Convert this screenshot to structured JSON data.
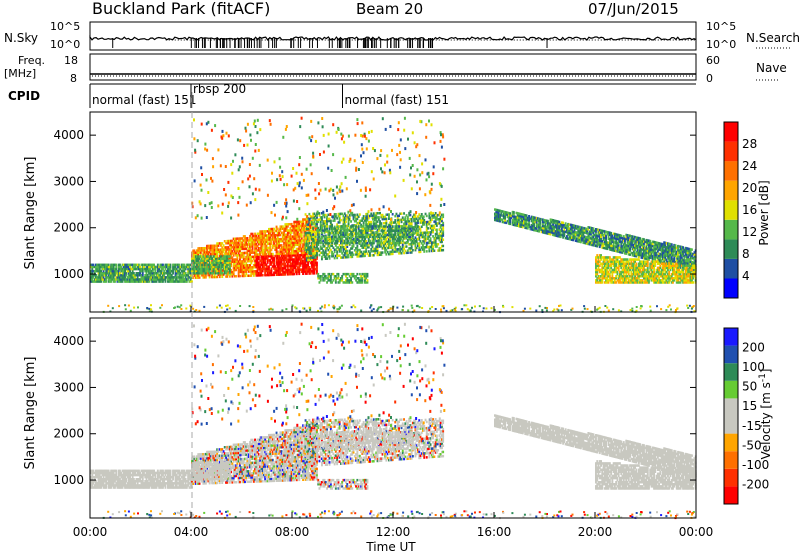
{
  "header": {
    "station": "Buckland Park (fitACF)",
    "beam": "Beam 20",
    "date": "07/Jun/2015"
  },
  "status_panel": {
    "nsky_label": "N.Sky",
    "nsearch_label": "N.Search",
    "nsky_ticks": [
      "10^5",
      "10^0"
    ],
    "nsearch_ticks": [
      "10^5",
      "10^0"
    ],
    "freq_label_top": "Freq.",
    "freq_label_unit": "[MHz]",
    "freq_ticks": [
      "18",
      "8"
    ],
    "nave_label": "Nave",
    "nave_ticks": [
      "60",
      "0"
    ],
    "cpid_label": "CPID",
    "cpid_segments": [
      {
        "label": "normal (fast) 151",
        "start_hour": 0,
        "end_hour": 4
      },
      {
        "label": "rbsp 200",
        "start_hour": 4,
        "end_hour": 10
      },
      {
        "label": "normal (fast) 151",
        "start_hour": 10,
        "end_hour": 24
      }
    ]
  },
  "colors": {
    "power_scale": [
      "#0000ff",
      "#1f4fa3",
      "#2e8b57",
      "#55b84a",
      "#e0e000",
      "#ffa500",
      "#ff7000",
      "#ff3000",
      "#ff0000"
    ],
    "velocity_scale": [
      "#1a1aff",
      "#2050b0",
      "#2e8b57",
      "#66cc33",
      "#c8c8c0",
      "#c8c8c0",
      "#ffa500",
      "#ff7000",
      "#ff3000",
      "#ff0000"
    ],
    "gs_gray": "#c8c8c0"
  },
  "chart_data": [
    {
      "type": "heatmap",
      "name": "power",
      "xlabel": "Time UT",
      "ylabel": "Slant Range [km]",
      "xlim": [
        0,
        24
      ],
      "ylim": [
        180,
        4500
      ],
      "y_ticks": [
        "1000",
        "2000",
        "3000",
        "4000"
      ],
      "colorbar_label": "Power [dB]",
      "colorbar_ticks": [
        "4",
        "8",
        "12",
        "16",
        "20",
        "24",
        "28"
      ],
      "colorbar_range": [
        0,
        30
      ],
      "echo_regions": [
        {
          "desc": "ground scatter band",
          "t_start": 0,
          "t_end": 4,
          "range_low": 800,
          "range_high": 1300,
          "power_db": 10
        },
        {
          "desc": "strong morning echoes",
          "t_start": 4,
          "t_end": 9,
          "range_low": 900,
          "range_high": 2300,
          "power_db": 26
        },
        {
          "desc": "late morning patches",
          "t_start": 8,
          "t_end": 14,
          "range_low": 900,
          "range_high": 2500,
          "power_db": 12
        },
        {
          "desc": "evening ground scatter",
          "t_start": 16,
          "t_end": 24,
          "range_low": 800,
          "range_high": 2300,
          "power_db": 10
        }
      ]
    },
    {
      "type": "heatmap",
      "name": "velocity",
      "xlabel": "Time UT",
      "ylabel": "Slant Range [km]",
      "xlim": [
        0,
        24
      ],
      "ylim": [
        180,
        4500
      ],
      "x_ticks": [
        "00:00",
        "04:00",
        "08:00",
        "12:00",
        "16:00",
        "20:00",
        "00:00"
      ],
      "y_ticks": [
        "1000",
        "2000",
        "3000",
        "4000"
      ],
      "colorbar_label": "Velocity [m s",
      "colorbar_unit_exp": "-1",
      "colorbar_unit_close": "]",
      "colorbar_ticks": [
        "200",
        "100",
        "50",
        "15",
        "-15",
        "-50",
        "-100",
        "-200"
      ]
    }
  ]
}
